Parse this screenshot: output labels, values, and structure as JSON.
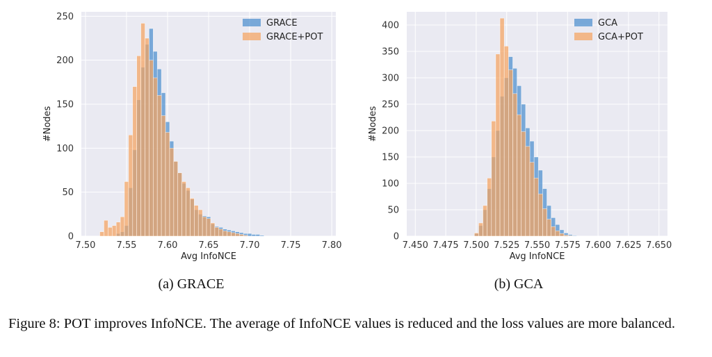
{
  "chart_data": [
    {
      "type": "histogram",
      "subcaption": "(a) GRACE",
      "xlabel": "Avg InfoNCE",
      "ylabel": "#Nodes",
      "xlim": [
        7.495,
        7.805
      ],
      "ylim": [
        0,
        255
      ],
      "xticks": [
        "7.50",
        "7.55",
        "7.60",
        "7.65",
        "7.70",
        "7.75",
        "7.80"
      ],
      "xtick_values": [
        7.5,
        7.55,
        7.6,
        7.65,
        7.7,
        7.75,
        7.8
      ],
      "yticks": [
        0,
        50,
        100,
        150,
        200,
        250
      ],
      "bin_start": 7.5175,
      "bin_width": 0.005,
      "grid": true,
      "legend_position": "top-right",
      "series": [
        {
          "name": "GRACE",
          "color": "#4c8fcd",
          "counts": [
            0,
            0,
            0,
            0,
            3,
            5,
            12,
            55,
            98,
            155,
            192,
            218,
            236,
            210,
            190,
            163,
            130,
            108,
            85,
            72,
            60,
            52,
            42,
            30,
            25,
            23,
            22,
            14,
            11,
            10,
            8,
            7,
            6,
            5,
            4,
            3,
            3,
            2,
            2,
            1
          ]
        },
        {
          "name": "GRACE+POT",
          "color": "#f5a460",
          "counts": [
            5,
            18,
            10,
            12,
            16,
            22,
            62,
            115,
            170,
            205,
            242,
            225,
            200,
            180,
            160,
            137,
            118,
            100,
            85,
            72,
            62,
            55,
            43,
            35,
            30,
            22,
            20,
            15,
            10,
            8,
            6,
            5,
            4,
            3,
            2,
            1,
            0,
            0,
            0,
            0
          ]
        }
      ]
    },
    {
      "type": "histogram",
      "subcaption": "(b) GCA",
      "xlabel": "Avg InfoNCE",
      "ylabel": "#Nodes",
      "xlim": [
        7.443,
        7.657
      ],
      "ylim": [
        0,
        425
      ],
      "xticks": [
        "7.450",
        "7.475",
        "7.500",
        "7.525",
        "7.550",
        "7.575",
        "7.600",
        "7.625",
        "7.650"
      ],
      "xtick_values": [
        7.45,
        7.475,
        7.5,
        7.525,
        7.55,
        7.575,
        7.6,
        7.625,
        7.65
      ],
      "yticks": [
        0,
        50,
        100,
        150,
        200,
        250,
        300,
        350,
        400
      ],
      "bin_start": 7.4985,
      "bin_width": 0.0035,
      "grid": true,
      "legend_position": "top-right",
      "series": [
        {
          "name": "GCA",
          "color": "#4c8fcd",
          "counts": [
            5,
            20,
            50,
            90,
            150,
            200,
            265,
            300,
            340,
            318,
            285,
            250,
            205,
            180,
            150,
            125,
            90,
            58,
            35,
            22,
            12,
            6,
            3,
            1
          ]
        },
        {
          "name": "GCA+POT",
          "color": "#f5a460",
          "counts": [
            6,
            25,
            58,
            110,
            218,
            345,
            413,
            360,
            315,
            270,
            230,
            198,
            170,
            140,
            110,
            80,
            52,
            32,
            18,
            10,
            5,
            2,
            1,
            0
          ]
        }
      ]
    }
  ],
  "figure": {
    "caption": "Figure 8: POT improves InfoNCE. The average of InfoNCE values is reduced and the loss values are more balanced."
  }
}
